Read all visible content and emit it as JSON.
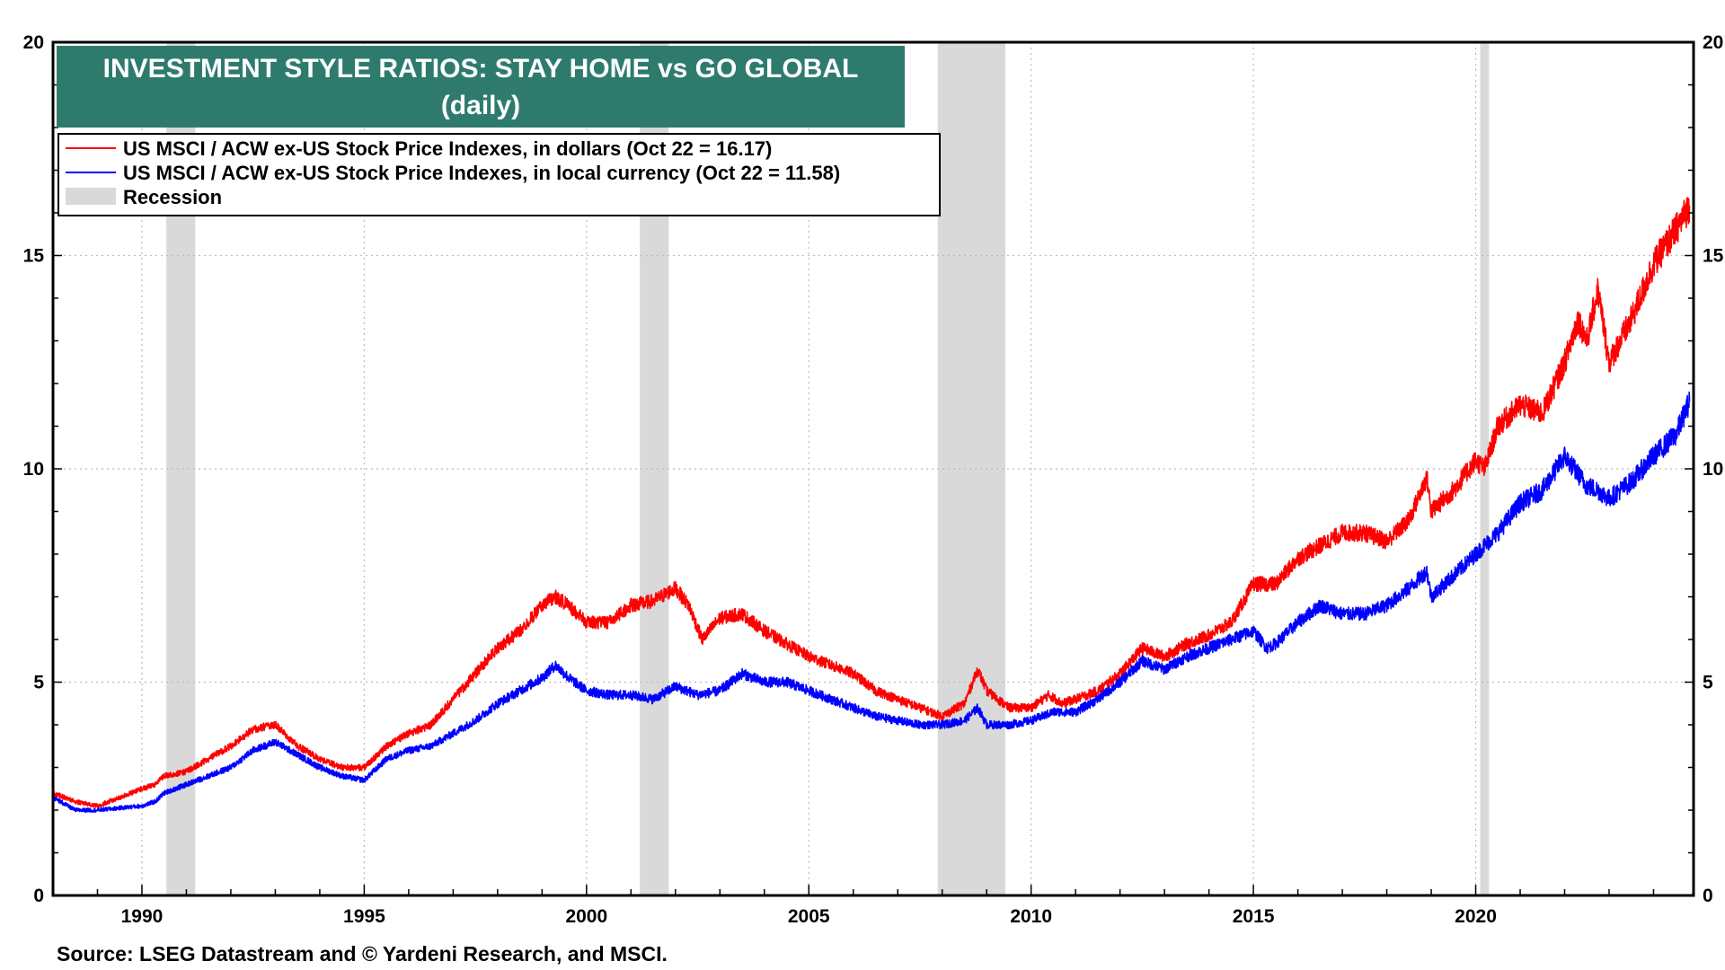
{
  "chart_data": {
    "type": "line",
    "title": "INVESTMENT STYLE RATIOS: STAY HOME vs GO GLOBAL",
    "subtitle": "(daily)",
    "source": "Source: LSEG Datastream and © Yardeni Research, and MSCI.",
    "xlim": [
      1988.0,
      2024.9
    ],
    "ylim": [
      0,
      20
    ],
    "y_ticks": [
      0,
      5,
      10,
      15,
      20
    ],
    "y_tick_labels": [
      "0",
      "5",
      "10",
      "15",
      "20"
    ],
    "x_ticks": [
      1990,
      1995,
      2000,
      2005,
      2010,
      2015,
      2020
    ],
    "x_tick_labels": [
      "1990",
      "1995",
      "2000",
      "2005",
      "2010",
      "2015",
      "2020"
    ],
    "grid": true,
    "legend_position": "top-left",
    "recessions": [
      [
        1990.55,
        1991.2
      ],
      [
        2001.2,
        2001.85
      ],
      [
        2007.9,
        2009.42
      ],
      [
        2020.1,
        2020.3
      ]
    ],
    "legend": {
      "red_label": "US MSCI / ACW ex-US Stock Price Indexes, in dollars (Oct 22 = 16.17)",
      "blue_label": "US MSCI / ACW ex-US Stock Price Indexes, in local currency (Oct 22 = 11.58)",
      "recession_label": "Recession"
    },
    "series": [
      {
        "name": "US MSCI / ACW ex-US Stock Price Indexes, in dollars",
        "color": "#ff0000",
        "x": [
          1988.0,
          1988.5,
          1989.0,
          1989.5,
          1990.0,
          1990.3,
          1990.5,
          1991.0,
          1991.5,
          1992.0,
          1992.5,
          1993.0,
          1993.5,
          1994.0,
          1994.5,
          1995.0,
          1995.5,
          1996.0,
          1996.5,
          1997.0,
          1997.5,
          1998.0,
          1998.5,
          1999.0,
          1999.3,
          1999.6,
          2000.0,
          2000.5,
          2001.0,
          2001.5,
          2002.0,
          2002.3,
          2002.6,
          2003.0,
          2003.5,
          2004.0,
          2004.5,
          2005.0,
          2005.5,
          2006.0,
          2006.5,
          2007.0,
          2007.5,
          2008.0,
          2008.5,
          2008.8,
          2009.0,
          2009.5,
          2010.0,
          2010.4,
          2010.7,
          2011.0,
          2011.5,
          2012.0,
          2012.5,
          2013.0,
          2013.5,
          2014.0,
          2014.5,
          2015.0,
          2015.5,
          2016.0,
          2016.5,
          2017.0,
          2017.5,
          2018.0,
          2018.5,
          2018.9,
          2019.0,
          2019.5,
          2020.0,
          2020.2,
          2020.5,
          2021.0,
          2021.5,
          2022.0,
          2022.3,
          2022.5,
          2022.75,
          2023.0,
          2023.5,
          2024.0,
          2024.5,
          2024.81
        ],
        "values": [
          2.4,
          2.2,
          2.1,
          2.3,
          2.5,
          2.6,
          2.8,
          2.9,
          3.2,
          3.5,
          3.9,
          4.0,
          3.5,
          3.2,
          3.0,
          3.0,
          3.5,
          3.8,
          4.0,
          4.6,
          5.2,
          5.8,
          6.2,
          6.8,
          7.0,
          6.8,
          6.4,
          6.4,
          6.8,
          6.9,
          7.2,
          6.8,
          6.0,
          6.5,
          6.6,
          6.2,
          5.9,
          5.6,
          5.4,
          5.2,
          4.8,
          4.6,
          4.4,
          4.2,
          4.5,
          5.3,
          4.8,
          4.4,
          4.4,
          4.7,
          4.5,
          4.6,
          4.8,
          5.2,
          5.8,
          5.6,
          5.9,
          6.1,
          6.4,
          7.3,
          7.3,
          7.9,
          8.2,
          8.5,
          8.5,
          8.3,
          8.8,
          9.8,
          9.0,
          9.5,
          10.2,
          10.0,
          11.0,
          11.5,
          11.3,
          12.5,
          13.5,
          13.0,
          14.2,
          12.5,
          13.5,
          14.8,
          15.6,
          16.17
        ]
      },
      {
        "name": "US MSCI / ACW ex-US Stock Price Indexes, in local currency",
        "color": "#0000ff",
        "x": [
          1988.0,
          1988.5,
          1989.0,
          1989.5,
          1990.0,
          1990.3,
          1990.5,
          1991.0,
          1991.5,
          1992.0,
          1992.5,
          1993.0,
          1993.5,
          1994.0,
          1994.5,
          1995.0,
          1995.5,
          1996.0,
          1996.5,
          1997.0,
          1997.5,
          1998.0,
          1998.5,
          1999.0,
          1999.3,
          1999.6,
          2000.0,
          2000.5,
          2001.0,
          2001.5,
          2002.0,
          2002.5,
          2003.0,
          2003.5,
          2004.0,
          2004.5,
          2005.0,
          2005.5,
          2006.0,
          2006.5,
          2007.0,
          2007.5,
          2008.0,
          2008.5,
          2008.8,
          2009.0,
          2009.5,
          2010.0,
          2010.5,
          2011.0,
          2011.5,
          2012.0,
          2012.5,
          2013.0,
          2013.5,
          2014.0,
          2014.5,
          2015.0,
          2015.3,
          2015.5,
          2016.0,
          2016.5,
          2017.0,
          2017.5,
          2018.0,
          2018.5,
          2018.9,
          2019.0,
          2019.5,
          2020.0,
          2020.2,
          2020.5,
          2021.0,
          2021.5,
          2022.0,
          2022.5,
          2022.75,
          2023.0,
          2023.5,
          2024.0,
          2024.5,
          2024.81
        ],
        "values": [
          2.3,
          2.0,
          2.0,
          2.05,
          2.1,
          2.2,
          2.4,
          2.6,
          2.8,
          3.0,
          3.4,
          3.6,
          3.3,
          3.0,
          2.8,
          2.7,
          3.2,
          3.4,
          3.5,
          3.8,
          4.1,
          4.5,
          4.8,
          5.1,
          5.4,
          5.1,
          4.8,
          4.7,
          4.7,
          4.6,
          4.9,
          4.7,
          4.8,
          5.2,
          5.0,
          5.0,
          4.8,
          4.6,
          4.4,
          4.2,
          4.1,
          4.0,
          4.0,
          4.1,
          4.4,
          4.0,
          4.0,
          4.1,
          4.3,
          4.3,
          4.6,
          5.0,
          5.5,
          5.3,
          5.6,
          5.8,
          6.0,
          6.2,
          5.8,
          5.9,
          6.4,
          6.8,
          6.6,
          6.6,
          6.8,
          7.2,
          7.6,
          7.0,
          7.5,
          8.0,
          8.2,
          8.5,
          9.2,
          9.5,
          10.3,
          9.6,
          9.5,
          9.3,
          9.7,
          10.3,
          10.8,
          11.58
        ]
      }
    ]
  }
}
